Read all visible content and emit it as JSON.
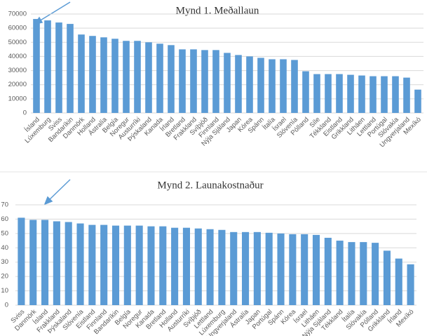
{
  "chart_data": [
    {
      "type": "bar",
      "title": "Mynd 1. Meðallaun",
      "categories": [
        "Ísland",
        "Lúxemburg",
        "Sviss",
        "Bandaríkin",
        "Danmörk",
        "Holland",
        "Ástralía",
        "Belgía",
        "Noregur",
        "Austurríki",
        "Þýskaland",
        "Kanada",
        "Írland",
        "Bretland",
        "Frakkland",
        "Svíþjóð",
        "Finnland",
        "Nýja Sjáland",
        "Japan",
        "Kórea",
        "Spánn",
        "Ítalía",
        "Ísrael",
        "Slóvenía",
        "Pólland",
        "Síle",
        "Tékkland",
        "Eistland",
        "Grikkland",
        "Litháen",
        "Lettland",
        "Portúgal",
        "Slóvakía",
        "Ungverjaland",
        "Mexíkó"
      ],
      "values": [
        66500,
        65500,
        64000,
        63000,
        55500,
        54500,
        53500,
        52500,
        51000,
        51000,
        50000,
        49000,
        48000,
        45000,
        45000,
        44500,
        44500,
        42500,
        41000,
        40000,
        39000,
        38000,
        38000,
        37500,
        29500,
        27500,
        27500,
        27500,
        27000,
        26500,
        26000,
        26000,
        26000,
        25000,
        16500
      ],
      "color": "#5b9bd5",
      "ylim": [
        0,
        70000
      ],
      "yticks": [
        0,
        10000,
        20000,
        30000,
        40000,
        50000,
        60000,
        70000
      ],
      "grid": true
    },
    {
      "type": "bar",
      "title": "Mynd 2. Launakostnaður",
      "categories": [
        "Sviss",
        "Danmörk",
        "Ísland",
        "Frakkland",
        "Þýskaland",
        "Slóvenía",
        "Eistland",
        "Finnland",
        "Bandaríkin",
        "Belgía",
        "Noregur",
        "Kanada",
        "Bretland",
        "Holland",
        "Austurríki",
        "Svíþjóð",
        "Lettland",
        "Lúxemburg",
        "Ungverjaland",
        "Ástralía",
        "Japan",
        "Portúgal",
        "Spánn",
        "Kórea",
        "Ísrael",
        "Litháen",
        "Nýja Sjáland",
        "Tékkland",
        "Ítalía",
        "Slóvakía",
        "Pólland",
        "Grikkland",
        "Írland",
        "Mexíkó"
      ],
      "values": [
        61,
        59.5,
        59.5,
        58.5,
        58,
        57,
        56,
        56,
        55.5,
        55.5,
        55.5,
        55,
        55,
        54,
        54,
        53.5,
        53,
        52.5,
        51,
        51,
        51,
        50.5,
        50,
        49.5,
        49.5,
        49,
        47,
        45,
        44,
        44,
        43.5,
        38,
        32.5,
        28.5
      ],
      "color": "#5b9bd5",
      "ylim": [
        0,
        70
      ],
      "yticks": [
        0,
        10,
        20,
        30,
        40,
        50,
        60,
        70
      ],
      "grid": true
    }
  ]
}
